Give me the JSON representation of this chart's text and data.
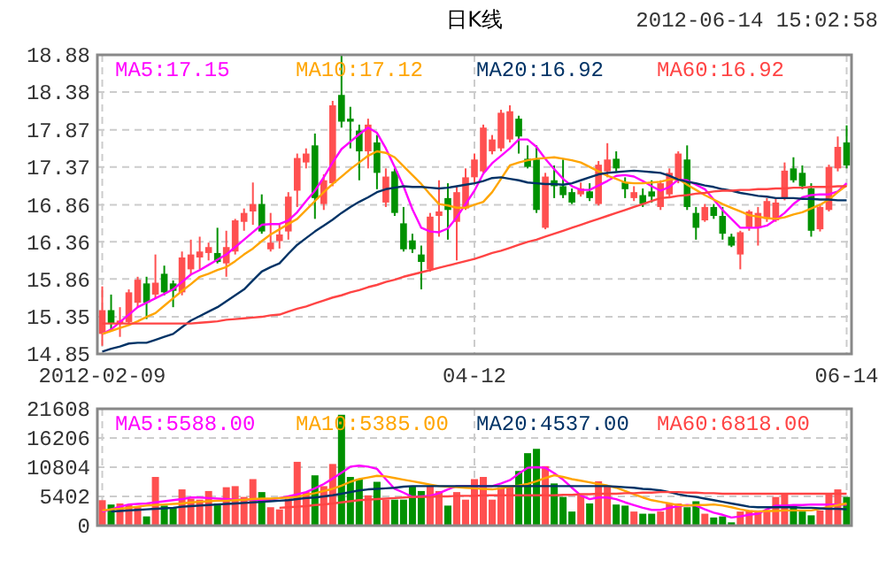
{
  "chart_data": [
    {
      "type": "candlestick",
      "title": "日K线",
      "annotations": [
        "2012-06-14 15:02:58"
      ],
      "categories": [
        "2012-02-09",
        null,
        null,
        null,
        null,
        null,
        null,
        null,
        null,
        null,
        null,
        null,
        null,
        null,
        null,
        null,
        null,
        null,
        null,
        null,
        null,
        null,
        null,
        null,
        null,
        null,
        null,
        null,
        null,
        null,
        null,
        null,
        null,
        null,
        null,
        null,
        null,
        null,
        null,
        null,
        null,
        null,
        "04-12",
        null,
        null,
        null,
        null,
        null,
        null,
        null,
        null,
        null,
        null,
        null,
        null,
        null,
        null,
        null,
        null,
        null,
        null,
        null,
        null,
        null,
        null,
        null,
        null,
        null,
        null,
        null,
        null,
        null,
        null,
        null,
        null,
        null,
        null,
        null,
        null,
        null,
        null,
        null,
        null,
        null,
        "06-14"
      ],
      "ohlc": [
        [
          15.12,
          15.76,
          14.96,
          15.44
        ],
        [
          15.44,
          15.65,
          15.16,
          15.26
        ],
        [
          15.26,
          15.48,
          15.08,
          15.3
        ],
        [
          15.28,
          15.72,
          15.24,
          15.68
        ],
        [
          15.54,
          15.89,
          15.48,
          15.85
        ],
        [
          15.8,
          15.89,
          15.32,
          15.54
        ],
        [
          15.65,
          16.19,
          15.6,
          15.81
        ],
        [
          15.93,
          16.04,
          15.64,
          15.68
        ],
        [
          15.8,
          15.84,
          15.48,
          15.7
        ],
        [
          15.68,
          16.23,
          15.64,
          16.15
        ],
        [
          15.99,
          16.39,
          15.92,
          16.19
        ],
        [
          16.15,
          16.43,
          15.99,
          16.23
        ],
        [
          16.21,
          16.35,
          16.11,
          16.29
        ],
        [
          16.21,
          16.55,
          16.07,
          16.09
        ],
        [
          16.07,
          16.51,
          15.89,
          16.29
        ],
        [
          16.23,
          16.67,
          16.19,
          16.65
        ],
        [
          16.63,
          16.81,
          16.51,
          16.75
        ],
        [
          16.77,
          17.16,
          16.59,
          16.87
        ],
        [
          16.87,
          17.0,
          16.47,
          16.5
        ],
        [
          16.26,
          16.75,
          16.23,
          16.35
        ],
        [
          16.37,
          16.59,
          16.27,
          16.46
        ],
        [
          16.5,
          17.03,
          16.39,
          16.97
        ],
        [
          17.05,
          17.55,
          16.83,
          17.49
        ],
        [
          17.43,
          17.62,
          17.35,
          17.55
        ],
        [
          17.66,
          17.82,
          16.67,
          16.95
        ],
        [
          16.87,
          17.27,
          16.79,
          17.19
        ],
        [
          17.15,
          18.26,
          17.11,
          18.2
        ],
        [
          18.34,
          18.88,
          17.9,
          17.98
        ],
        [
          18.02,
          18.18,
          17.62,
          17.98
        ],
        [
          17.86,
          17.94,
          17.19,
          17.58
        ],
        [
          17.58,
          18.02,
          17.35,
          17.94
        ],
        [
          17.7,
          17.8,
          17.07,
          17.29
        ],
        [
          16.89,
          17.35,
          16.83,
          17.24
        ],
        [
          17.31,
          17.35,
          16.71,
          16.75
        ],
        [
          16.61,
          16.83,
          16.23,
          16.26
        ],
        [
          16.38,
          16.47,
          16.21,
          16.26
        ],
        [
          16.19,
          16.31,
          15.72,
          16.09
        ],
        [
          15.99,
          16.75,
          15.96,
          16.7
        ],
        [
          16.71,
          17.19,
          16.43,
          16.77
        ],
        [
          16.95,
          17.15,
          16.39,
          16.79
        ],
        [
          16.63,
          17.11,
          16.11,
          17.03
        ],
        [
          16.81,
          17.35,
          16.79,
          17.23
        ],
        [
          17.23,
          17.55,
          17.15,
          17.47
        ],
        [
          17.31,
          17.94,
          17.29,
          17.9
        ],
        [
          17.58,
          17.8,
          17.54,
          17.74
        ],
        [
          17.62,
          18.14,
          17.58,
          18.1
        ],
        [
          17.74,
          18.2,
          17.7,
          18.12
        ],
        [
          18.02,
          18.06,
          17.55,
          17.78
        ],
        [
          17.48,
          17.66,
          17.35,
          17.37
        ],
        [
          17.47,
          17.66,
          16.75,
          16.79
        ],
        [
          16.55,
          17.29,
          16.53,
          17.24
        ],
        [
          17.19,
          17.39,
          16.95,
          17.11
        ],
        [
          17.11,
          17.47,
          16.95,
          16.99
        ],
        [
          17.03,
          17.08,
          16.87,
          16.89
        ],
        [
          17.0,
          17.16,
          16.97,
          17.08
        ],
        [
          17.04,
          17.15,
          16.91,
          16.95
        ],
        [
          16.87,
          17.45,
          16.85,
          17.4
        ],
        [
          17.31,
          17.69,
          17.23,
          17.47
        ],
        [
          17.48,
          17.58,
          17.31,
          17.35
        ],
        [
          17.16,
          17.23,
          16.95,
          17.07
        ],
        [
          16.95,
          17.11,
          16.91,
          17.03
        ],
        [
          16.99,
          17.08,
          16.83,
          16.87
        ],
        [
          17.04,
          17.19,
          16.89,
          16.97
        ],
        [
          16.83,
          17.19,
          16.79,
          17.15
        ],
        [
          17.0,
          17.35,
          16.97,
          17.29
        ],
        [
          17.19,
          17.58,
          17.15,
          17.55
        ],
        [
          17.47,
          17.66,
          16.79,
          16.83
        ],
        [
          16.75,
          16.83,
          16.39,
          16.55
        ],
        [
          16.65,
          16.87,
          16.63,
          16.83
        ],
        [
          16.83,
          16.87,
          16.67,
          16.71
        ],
        [
          16.71,
          16.83,
          16.39,
          16.47
        ],
        [
          16.43,
          16.47,
          16.29,
          16.31
        ],
        [
          16.19,
          16.51,
          15.99,
          16.49
        ],
        [
          16.55,
          16.79,
          16.51,
          16.77
        ],
        [
          16.55,
          16.83,
          16.31,
          16.75
        ],
        [
          16.67,
          16.95,
          16.63,
          16.91
        ],
        [
          16.65,
          16.95,
          16.63,
          16.89
        ],
        [
          16.95,
          17.43,
          16.92,
          17.32
        ],
        [
          17.35,
          17.5,
          17.16,
          17.19
        ],
        [
          17.29,
          17.39,
          17.07,
          17.11
        ],
        [
          17.08,
          17.15,
          16.43,
          16.51
        ],
        [
          16.53,
          16.87,
          16.5,
          16.83
        ],
        [
          16.79,
          17.4,
          16.77,
          17.37
        ],
        [
          17.35,
          17.78,
          17.31,
          17.64
        ],
        [
          17.7,
          17.93,
          17.35,
          17.39
        ]
      ],
      "colors": [
        "#ff5050",
        "#009100",
        "#ff5050",
        "#ff5050",
        "#ff5050",
        "#009100",
        "#ff5050",
        "#009100",
        "#009100",
        "#ff5050",
        "#ff5050",
        "#ff5050",
        "#ff5050",
        "#009100",
        "#ff5050",
        "#ff5050",
        "#ff5050",
        "#ff5050",
        "#009100",
        "#ff5050",
        "#ff5050",
        "#ff5050",
        "#ff5050",
        "#ff5050",
        "#009100",
        "#ff5050",
        "#ff5050",
        "#009100",
        "#009100",
        "#009100",
        "#ff5050",
        "#009100",
        "#ff5050",
        "#009100",
        "#009100",
        "#009100",
        "#009100",
        "#ff5050",
        "#ff5050",
        "#009100",
        "#ff5050",
        "#ff5050",
        "#ff5050",
        "#ff5050",
        "#ff5050",
        "#ff5050",
        "#ff5050",
        "#009100",
        "#009100",
        "#009100",
        "#ff5050",
        "#009100",
        "#009100",
        "#009100",
        "#ff5050",
        "#009100",
        "#ff5050",
        "#ff5050",
        "#009100",
        "#009100",
        "#ff5050",
        "#009100",
        "#009100",
        "#ff5050",
        "#ff5050",
        "#ff5050",
        "#009100",
        "#009100",
        "#ff5050",
        "#009100",
        "#009100",
        "#009100",
        "#ff5050",
        "#ff5050",
        "#ff5050",
        "#ff5050",
        "#ff5050",
        "#ff5050",
        "#009100",
        "#009100",
        "#009100",
        "#ff5050",
        "#ff5050",
        "#ff5050",
        "#009100"
      ],
      "series": [
        {
          "type": "line",
          "name": "MA5:17.15",
          "color": "#ff00ff",
          "values": [
            15.12,
            15.18,
            15.28,
            15.38,
            15.48,
            15.54,
            15.6,
            15.66,
            15.72,
            15.82,
            15.92,
            15.98,
            16.05,
            16.12,
            16.19,
            16.29,
            16.39,
            16.49,
            16.59,
            16.6,
            16.6,
            16.65,
            16.76,
            16.91,
            17.05,
            17.23,
            17.43,
            17.61,
            17.71,
            17.81,
            17.9,
            17.83,
            17.62,
            17.37,
            17.11,
            16.8,
            16.55,
            16.5,
            16.49,
            16.54,
            16.69,
            16.87,
            17.05,
            17.28,
            17.42,
            17.52,
            17.62,
            17.74,
            17.74,
            17.64,
            17.48,
            17.34,
            17.21,
            17.11,
            17.06,
            17.06,
            17.12,
            17.18,
            17.25,
            17.26,
            17.24,
            17.18,
            17.11,
            17.05,
            17.1,
            17.2,
            17.19,
            17.13,
            17.07,
            16.93,
            16.79,
            16.67,
            16.55,
            16.55,
            16.55,
            16.58,
            16.66,
            16.75,
            16.87,
            16.96,
            16.99,
            17.0,
            17.0,
            17.04,
            17.15
          ]
        },
        {
          "type": "line",
          "name": "MA10:17.12",
          "color": "#ffa500",
          "values": [
            15.12,
            15.16,
            15.2,
            15.24,
            15.29,
            15.35,
            15.4,
            15.5,
            15.6,
            15.7,
            15.79,
            15.89,
            15.93,
            15.98,
            16.02,
            16.1,
            16.19,
            16.27,
            16.37,
            16.46,
            16.53,
            16.6,
            16.67,
            16.79,
            16.91,
            17.03,
            17.14,
            17.24,
            17.34,
            17.43,
            17.52,
            17.58,
            17.56,
            17.5,
            17.38,
            17.26,
            17.14,
            17.0,
            16.87,
            16.85,
            16.82,
            16.82,
            16.86,
            16.9,
            17.03,
            17.21,
            17.39,
            17.43,
            17.46,
            17.48,
            17.49,
            17.5,
            17.48,
            17.46,
            17.43,
            17.37,
            17.31,
            17.25,
            17.21,
            17.16,
            17.15,
            17.15,
            17.16,
            17.17,
            17.2,
            17.21,
            17.13,
            17.06,
            16.99,
            16.93,
            16.87,
            16.82,
            16.77,
            16.72,
            16.7,
            16.68,
            16.67,
            16.69,
            16.73,
            16.76,
            16.81,
            16.86,
            16.93,
            17.03,
            17.12
          ]
        },
        {
          "type": "line",
          "name": "MA20:16.92",
          "color": "#003366",
          "values": [
            14.88,
            14.92,
            14.95,
            14.99,
            15.0,
            15.0,
            15.04,
            15.08,
            15.12,
            15.21,
            15.3,
            15.36,
            15.42,
            15.48,
            15.56,
            15.64,
            15.72,
            15.84,
            15.96,
            16.02,
            16.07,
            16.2,
            16.32,
            16.41,
            16.5,
            16.58,
            16.66,
            16.75,
            16.83,
            16.9,
            16.96,
            17.03,
            17.07,
            17.09,
            17.11,
            17.1,
            17.1,
            17.09,
            17.08,
            17.09,
            17.11,
            17.13,
            17.15,
            17.18,
            17.22,
            17.23,
            17.21,
            17.19,
            17.16,
            17.15,
            17.14,
            17.14,
            17.13,
            17.15,
            17.19,
            17.23,
            17.27,
            17.29,
            17.3,
            17.31,
            17.32,
            17.31,
            17.3,
            17.29,
            17.25,
            17.2,
            17.17,
            17.15,
            17.12,
            17.1,
            17.07,
            17.05,
            17.02,
            17.0,
            16.98,
            16.97,
            16.95,
            16.95,
            16.95,
            16.94,
            16.94,
            16.93,
            16.93,
            16.92,
            16.92
          ]
        },
        {
          "type": "line",
          "name": "MA60:16.92",
          "color": "#ff4444",
          "values": [
            15.26,
            15.26,
            15.26,
            15.26,
            15.26,
            15.26,
            15.26,
            15.26,
            15.26,
            15.26,
            15.26,
            15.27,
            15.28,
            15.29,
            15.31,
            15.32,
            15.33,
            15.34,
            15.35,
            15.37,
            15.38,
            15.42,
            15.46,
            15.49,
            15.53,
            15.57,
            15.61,
            15.64,
            15.68,
            15.71,
            15.75,
            15.78,
            15.82,
            15.85,
            15.89,
            15.92,
            15.95,
            15.98,
            16.01,
            16.04,
            16.07,
            16.1,
            16.13,
            16.17,
            16.21,
            16.24,
            16.28,
            16.32,
            16.36,
            16.39,
            16.43,
            16.47,
            16.51,
            16.55,
            16.59,
            16.63,
            16.67,
            16.71,
            16.75,
            16.79,
            16.83,
            16.87,
            16.91,
            16.95,
            16.96,
            16.98,
            16.99,
            17.01,
            17.02,
            17.04,
            17.05,
            17.05,
            17.06,
            17.06,
            17.07,
            17.07,
            17.08,
            17.08,
            17.09,
            17.09,
            17.1,
            17.1,
            17.1,
            17.11,
            17.11
          ]
        }
      ],
      "ylim": [
        14.85,
        18.88
      ],
      "yticks": [
        14.85,
        15.35,
        15.86,
        16.36,
        16.86,
        17.37,
        17.87,
        18.38,
        18.88
      ],
      "grid": true,
      "legend": "top"
    },
    {
      "type": "bar",
      "categories": [
        null,
        null,
        null,
        null,
        null,
        null,
        null,
        null,
        null,
        null,
        null,
        null,
        null,
        null,
        null,
        null,
        null,
        null,
        null,
        null,
        null,
        null,
        null,
        null,
        null,
        null,
        null,
        null,
        null,
        null,
        null,
        null,
        null,
        null,
        null,
        null,
        null,
        null,
        null,
        null,
        null,
        null,
        null,
        null,
        null,
        null,
        null,
        null,
        null,
        null,
        null,
        null,
        null,
        null,
        null,
        null,
        null,
        null,
        null,
        null,
        null,
        null,
        null,
        null,
        null,
        null,
        null,
        null,
        null,
        null,
        null,
        null,
        null,
        null,
        null,
        null,
        null,
        null,
        null,
        null,
        null,
        null,
        null,
        null,
        null
      ],
      "values": [
        4700,
        3900,
        4100,
        3900,
        3400,
        1700,
        9000,
        3700,
        3400,
        6700,
        5000,
        4800,
        6400,
        4100,
        7100,
        7300,
        5300,
        8600,
        6200,
        3400,
        3000,
        5000,
        11800,
        6200,
        9300,
        7300,
        11400,
        20500,
        9000,
        8600,
        5600,
        8100,
        4800,
        4800,
        4800,
        7300,
        6400,
        7300,
        6400,
        3700,
        6200,
        4800,
        8600,
        9000,
        4800,
        7100,
        7300,
        10100,
        13400,
        14200,
        11000,
        7800,
        5300,
        2600,
        5600,
        4100,
        8200,
        7300,
        3900,
        3700,
        2600,
        2200,
        2200,
        2600,
        4100,
        4100,
        3400,
        4500,
        2200,
        1500,
        1700,
        600,
        2600,
        2800,
        2800,
        2800,
        5300,
        5900,
        3700,
        2600,
        1900,
        2800,
        5900,
        6700,
        5300
      ],
      "colors": [
        "#ff5050",
        "#009100",
        "#ff5050",
        "#ff5050",
        "#ff5050",
        "#009100",
        "#ff5050",
        "#009100",
        "#009100",
        "#ff5050",
        "#ff5050",
        "#ff5050",
        "#ff5050",
        "#009100",
        "#ff5050",
        "#ff5050",
        "#ff5050",
        "#ff5050",
        "#009100",
        "#ff5050",
        "#ff5050",
        "#ff5050",
        "#ff5050",
        "#ff5050",
        "#009100",
        "#ff5050",
        "#ff5050",
        "#009100",
        "#009100",
        "#009100",
        "#ff5050",
        "#009100",
        "#ff5050",
        "#009100",
        "#009100",
        "#009100",
        "#009100",
        "#ff5050",
        "#ff5050",
        "#009100",
        "#ff5050",
        "#ff5050",
        "#ff5050",
        "#ff5050",
        "#ff5050",
        "#ff5050",
        "#ff5050",
        "#009100",
        "#009100",
        "#009100",
        "#ff5050",
        "#009100",
        "#009100",
        "#009100",
        "#ff5050",
        "#009100",
        "#ff5050",
        "#ff5050",
        "#009100",
        "#009100",
        "#ff5050",
        "#009100",
        "#009100",
        "#ff5050",
        "#ff5050",
        "#ff5050",
        "#009100",
        "#009100",
        "#ff5050",
        "#009100",
        "#009100",
        "#009100",
        "#ff5050",
        "#ff5050",
        "#ff5050",
        "#ff5050",
        "#ff5050",
        "#ff5050",
        "#009100",
        "#009100",
        "#009100",
        "#ff5050",
        "#ff5050",
        "#ff5050",
        "#009100"
      ],
      "series": [
        {
          "type": "line",
          "name": "MA5:5588.00",
          "color": "#ff00ff",
          "values": [
            2600,
            3000,
            3500,
            3900,
            4000,
            4100,
            4300,
            4500,
            4700,
            4900,
            5200,
            5200,
            5100,
            5000,
            4900,
            4800,
            4800,
            4800,
            4800,
            4800,
            5100,
            5400,
            5800,
            6200,
            6900,
            7700,
            8700,
            9800,
            10900,
            11100,
            10900,
            10500,
            8600,
            6800,
            6100,
            5300,
            5400,
            5500,
            6000,
            6700,
            7300,
            7300,
            7300,
            7300,
            7300,
            7800,
            8400,
            9600,
            10700,
            10800,
            10700,
            9700,
            8500,
            7000,
            5600,
            4900,
            5200,
            5200,
            4900,
            4300,
            3800,
            3300,
            2900,
            2900,
            3300,
            3600,
            3800,
            3700,
            3000,
            2400,
            2000,
            1500,
            1700,
            2000,
            2200,
            3000,
            3700,
            3700,
            3800,
            3800,
            3900,
            3900,
            3900,
            3900,
            3900
          ]
        },
        {
          "type": "line",
          "name": "MA10:5385.00",
          "color": "#ffa500",
          "values": [
            2800,
            3000,
            3100,
            3300,
            3500,
            3700,
            3800,
            3900,
            4000,
            4100,
            4300,
            4400,
            4500,
            4600,
            4600,
            4700,
            4800,
            4900,
            5000,
            5000,
            5100,
            5200,
            5300,
            5700,
            6000,
            6400,
            6800,
            7400,
            8100,
            8600,
            8900,
            9200,
            9100,
            8800,
            8500,
            8200,
            7900,
            7600,
            7300,
            7200,
            7100,
            7000,
            6900,
            6800,
            6700,
            6900,
            7200,
            7400,
            7700,
            8200,
            8800,
            9300,
            9000,
            8600,
            8300,
            8000,
            7700,
            7400,
            7000,
            6400,
            5800,
            5200,
            4700,
            4400,
            4100,
            3800,
            3700,
            3800,
            3800,
            3900,
            3700,
            3400,
            3000,
            2700,
            2600,
            2700,
            2700,
            2800,
            2800,
            2800,
            2800,
            3100,
            3500,
            3800,
            4100
          ]
        },
        {
          "type": "line",
          "name": "MA20:4537.00",
          "color": "#003366",
          "values": [
            null,
            2600,
            2700,
            2800,
            2900,
            3000,
            3100,
            3200,
            3300,
            3500,
            3600,
            3700,
            3800,
            3900,
            4000,
            4100,
            4200,
            4300,
            4400,
            4500,
            4600,
            4700,
            4900,
            5100,
            5200,
            5400,
            5600,
            5900,
            6200,
            6500,
            6700,
            6800,
            6900,
            7000,
            7200,
            7300,
            7300,
            7300,
            7300,
            7300,
            7300,
            7300,
            7300,
            7300,
            7300,
            7300,
            7300,
            7300,
            7300,
            7300,
            7300,
            7300,
            7300,
            7300,
            7300,
            7300,
            7300,
            7300,
            7200,
            7100,
            7000,
            6800,
            6700,
            6500,
            6200,
            5800,
            5500,
            5300,
            5000,
            4700,
            4400,
            4100,
            3800,
            3500,
            3400,
            3400,
            3400,
            3400,
            3400,
            3300,
            3300,
            3200,
            3100,
            3100,
            3000
          ]
        },
        {
          "type": "line",
          "name": "MA60:6818.00",
          "color": "#ff4444",
          "values": [
            null,
            null,
            null,
            null,
            null,
            null,
            null,
            null,
            null,
            null,
            null,
            null,
            null,
            null,
            null,
            null,
            null,
            null,
            null,
            null,
            3300,
            3400,
            3500,
            3600,
            3800,
            3900,
            4100,
            4300,
            4500,
            4700,
            4800,
            4900,
            5000,
            5100,
            5200,
            5300,
            5300,
            5300,
            5400,
            5400,
            5500,
            5500,
            5500,
            5600,
            5600,
            5600,
            5600,
            5600,
            5600,
            5600,
            5600,
            5600,
            5700,
            5700,
            5800,
            5800,
            5900,
            5900,
            5900,
            6000,
            6000,
            6100,
            6100,
            6200,
            6200,
            6200,
            6100,
            6100,
            6000,
            6000,
            5900,
            5900,
            5900,
            5900,
            5900,
            5900,
            5900,
            5900,
            5900,
            5900,
            5900,
            5900,
            5900,
            5900,
            5900
          ]
        }
      ],
      "ylim": [
        0,
        21608
      ],
      "yticks": [
        0,
        5402,
        10804,
        16206,
        21608
      ],
      "grid": true,
      "legend": "top",
      "tick_labels": "y"
    }
  ]
}
